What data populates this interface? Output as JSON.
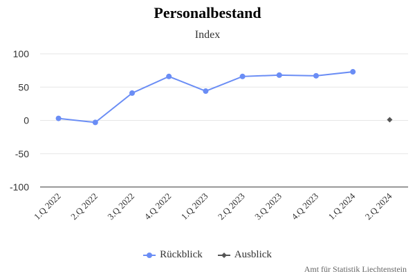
{
  "chart_data": {
    "type": "line",
    "title": "Personalbestand",
    "subtitle": "Index",
    "categories": [
      "1.Q 2022",
      "2.Q 2022",
      "3.Q 2022",
      "4.Q 2022",
      "1.Q 2023",
      "2.Q 2023",
      "3.Q 2023",
      "4.Q 2023",
      "1.Q 2024",
      "2.Q 2024"
    ],
    "series": [
      {
        "name": "Rückblick",
        "color": "#6a8df5",
        "marker": "circle",
        "values": [
          3,
          -3,
          41,
          66,
          44,
          66,
          68,
          67,
          73,
          null
        ]
      },
      {
        "name": "Ausblick",
        "color": "#555555",
        "marker": "diamond",
        "values": [
          null,
          null,
          null,
          null,
          null,
          null,
          null,
          null,
          null,
          1
        ]
      }
    ],
    "ylim": [
      -100,
      100
    ],
    "yticks": [
      100,
      50,
      0,
      -50,
      -100
    ],
    "grid": true,
    "legend_position": "bottom-center",
    "credit": "Amt für Statistik Liechtenstein"
  }
}
